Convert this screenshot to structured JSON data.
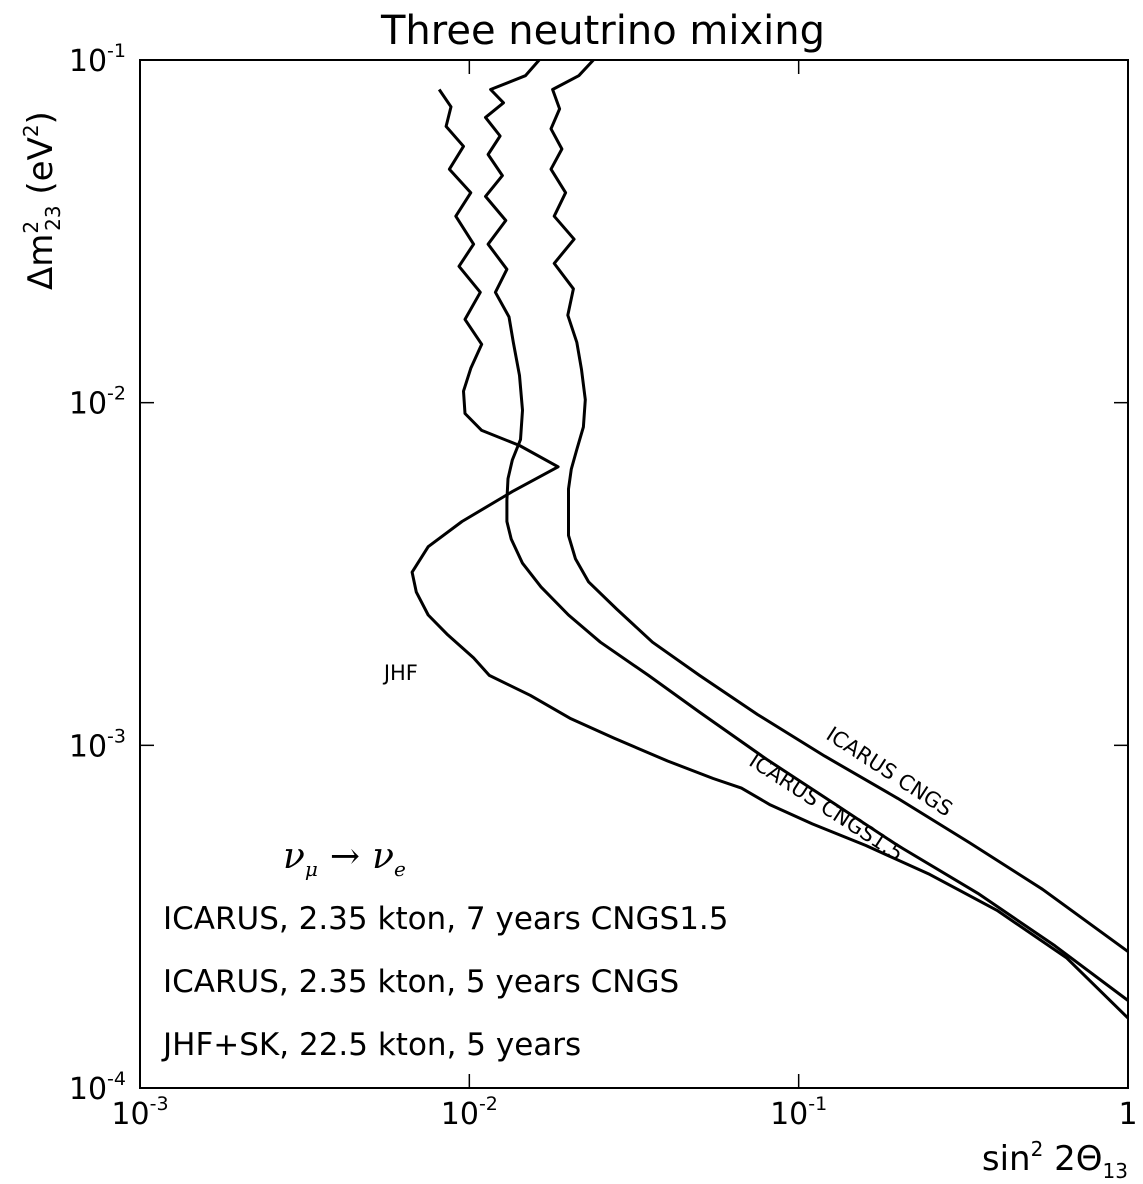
{
  "chart_data": {
    "type": "line",
    "title": "Three neutrino mixing",
    "xlabel": {
      "base": "sin",
      "sup": "2",
      "mid": " 2Θ",
      "sub": "13"
    },
    "ylabel": {
      "delta": "Δm",
      "sup": "2",
      "sub": "23",
      "unit": " (eV",
      "unit_sup": "2",
      "unit_end": ")"
    },
    "xscale": "log",
    "yscale": "log",
    "xlim": [
      0.001,
      1
    ],
    "ylim": [
      0.0001,
      0.1
    ],
    "xticks": [
      {
        "value": 0.001,
        "base": "10",
        "exp": "-3"
      },
      {
        "value": 0.01,
        "base": "10",
        "exp": "-2"
      },
      {
        "value": 0.1,
        "base": "10",
        "exp": "-1"
      },
      {
        "value": 1,
        "base": "1",
        "exp": ""
      }
    ],
    "yticks": [
      {
        "value": 0.0001,
        "base": "10",
        "exp": "-4"
      },
      {
        "value": 0.001,
        "base": "10",
        "exp": "-3"
      },
      {
        "value": 0.01,
        "base": "10",
        "exp": "-2"
      },
      {
        "value": 0.1,
        "base": "10",
        "exp": "-1"
      }
    ],
    "grid": false,
    "series": [
      {
        "name": "JHF",
        "label_pos": [
          0.0055,
          0.00155
        ],
        "points": [
          [
            0.0081,
            0.082
          ],
          [
            0.0088,
            0.073
          ],
          [
            0.0085,
            0.064
          ],
          [
            0.0096,
            0.056
          ],
          [
            0.0087,
            0.048
          ],
          [
            0.0101,
            0.041
          ],
          [
            0.0091,
            0.035
          ],
          [
            0.0103,
            0.029
          ],
          [
            0.0093,
            0.025
          ],
          [
            0.0108,
            0.021
          ],
          [
            0.0097,
            0.0175
          ],
          [
            0.0109,
            0.0148
          ],
          [
            0.0101,
            0.0126
          ],
          [
            0.0096,
            0.0108
          ],
          [
            0.0097,
            0.0093
          ],
          [
            0.0109,
            0.0083
          ],
          [
            0.0142,
            0.0075
          ],
          [
            0.0186,
            0.0065
          ],
          [
            0.0135,
            0.0055
          ],
          [
            0.0095,
            0.0045
          ],
          [
            0.0075,
            0.0038
          ],
          [
            0.0067,
            0.0032
          ],
          [
            0.0069,
            0.0028
          ],
          [
            0.0075,
            0.0024
          ],
          [
            0.0086,
            0.0021
          ],
          [
            0.0103,
            0.0018
          ],
          [
            0.0115,
            0.0016
          ],
          [
            0.0153,
            0.0014
          ],
          [
            0.0202,
            0.0012
          ],
          [
            0.0275,
            0.00105
          ],
          [
            0.04,
            0.0009
          ],
          [
            0.055,
            0.0008
          ],
          [
            0.067,
            0.00075
          ],
          [
            0.082,
            0.00067
          ],
          [
            0.11,
            0.00059
          ],
          [
            0.16,
            0.00051
          ],
          [
            0.25,
            0.00042
          ],
          [
            0.4,
            0.00033
          ],
          [
            0.65,
            0.00024
          ],
          [
            1.0,
            0.00016
          ]
        ]
      },
      {
        "name": "ICARUS CNGS1.5",
        "label_pos": [
          0.07,
          0.00088
        ],
        "label_angle": 33,
        "points": [
          [
            0.0163,
            0.1
          ],
          [
            0.0148,
            0.09
          ],
          [
            0.0116,
            0.082
          ],
          [
            0.0127,
            0.075
          ],
          [
            0.0112,
            0.068
          ],
          [
            0.0124,
            0.06
          ],
          [
            0.0114,
            0.053
          ],
          [
            0.0126,
            0.046
          ],
          [
            0.0112,
            0.04
          ],
          [
            0.0129,
            0.034
          ],
          [
            0.0114,
            0.029
          ],
          [
            0.013,
            0.0245
          ],
          [
            0.012,
            0.021
          ],
          [
            0.0132,
            0.0178
          ],
          [
            0.0136,
            0.015
          ],
          [
            0.0142,
            0.012
          ],
          [
            0.0145,
            0.0095
          ],
          [
            0.0143,
            0.0078
          ],
          [
            0.0135,
            0.0068
          ],
          [
            0.0131,
            0.006
          ],
          [
            0.013,
            0.0052
          ],
          [
            0.013,
            0.0045
          ],
          [
            0.0134,
            0.004
          ],
          [
            0.0145,
            0.0034
          ],
          [
            0.0165,
            0.0029
          ],
          [
            0.02,
            0.0024
          ],
          [
            0.025,
            0.002
          ],
          [
            0.035,
            0.0016
          ],
          [
            0.05,
            0.00125
          ],
          [
            0.08,
            0.00091
          ],
          [
            0.13,
            0.00067
          ],
          [
            0.2,
            0.00051
          ],
          [
            0.35,
            0.00037
          ],
          [
            0.6,
            0.00026
          ],
          [
            1.0,
            0.00018
          ]
        ]
      },
      {
        "name": "ICARUS CNGS",
        "label_pos": [
          0.12,
          0.00105
        ],
        "label_angle": 33,
        "points": [
          [
            0.0238,
            0.1
          ],
          [
            0.0215,
            0.09
          ],
          [
            0.0179,
            0.082
          ],
          [
            0.0188,
            0.072
          ],
          [
            0.0177,
            0.063
          ],
          [
            0.0191,
            0.055
          ],
          [
            0.0177,
            0.048
          ],
          [
            0.0196,
            0.041
          ],
          [
            0.0181,
            0.035
          ],
          [
            0.0208,
            0.03
          ],
          [
            0.0181,
            0.0255
          ],
          [
            0.0207,
            0.0215
          ],
          [
            0.0199,
            0.018
          ],
          [
            0.0212,
            0.015
          ],
          [
            0.0219,
            0.0125
          ],
          [
            0.0225,
            0.0102
          ],
          [
            0.0222,
            0.0085
          ],
          [
            0.0212,
            0.0073
          ],
          [
            0.0204,
            0.0064
          ],
          [
            0.02,
            0.0056
          ],
          [
            0.02,
            0.0048
          ],
          [
            0.02,
            0.0041
          ],
          [
            0.021,
            0.0035
          ],
          [
            0.023,
            0.003
          ],
          [
            0.028,
            0.0025
          ],
          [
            0.036,
            0.002
          ],
          [
            0.05,
            0.0016
          ],
          [
            0.075,
            0.00123
          ],
          [
            0.12,
            0.00093
          ],
          [
            0.2,
            0.0007
          ],
          [
            0.33,
            0.00052
          ],
          [
            0.55,
            0.00038
          ],
          [
            1.0,
            0.00025
          ]
        ]
      }
    ],
    "annotations": {
      "process": {
        "nu": "ν",
        "from_sub": "μ",
        "arrow": "→",
        "to_sub": "e"
      },
      "legend_lines": [
        "ICARUS, 2.35 kton, 7 years CNGS1.5",
        "ICARUS, 2.35 kton, 5 years CNGS",
        "JHF+SK, 22.5 kton, 5 years"
      ]
    },
    "line_color": "#000000"
  }
}
